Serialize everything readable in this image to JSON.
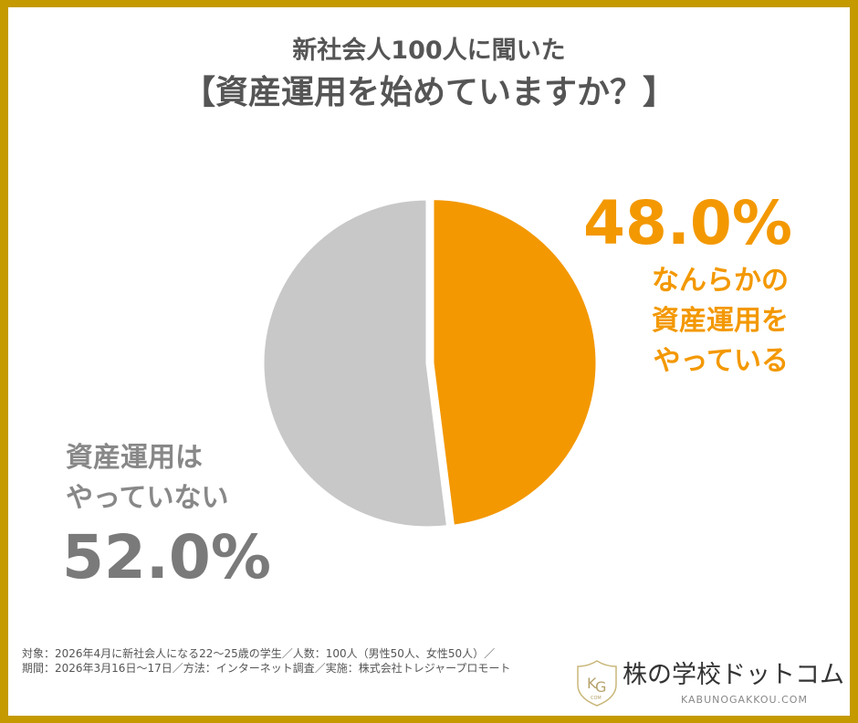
{
  "title": {
    "line1": "新社会人100人に聞いた",
    "line2": "【資産運用を始めていますか？】"
  },
  "chart_data": {
    "type": "pie",
    "slices": [
      {
        "label": "なんらかの資産運用をやっている",
        "value": 48.0,
        "display": "48.0%",
        "color": "#F39800",
        "label_lines": [
          "なんらかの",
          "資産運用を",
          "やっている"
        ]
      },
      {
        "label": "資産運用はやっていない",
        "value": 52.0,
        "display": "52.0%",
        "color": "#C8C8C8",
        "label_lines": [
          "資産運用は",
          "やっていない"
        ]
      }
    ],
    "start_angle": "top, clockwise"
  },
  "footer": {
    "line1": "対象：2026年4月に新社会人になる22〜25歳の学生／人数：100人（男性50人、女性50人）／",
    "line2": "期間：2026年3月16日〜17日／方法：インターネット調査／実施：株式会社トレジャープロモート"
  },
  "logo": {
    "name": "株の学校ドットコム",
    "url": "KABUNOGAKKOU.COM",
    "emblem": "KG COM"
  },
  "colors": {
    "border": "#C49A00",
    "accent": "#F39800",
    "gray": "#C8C8C8"
  }
}
